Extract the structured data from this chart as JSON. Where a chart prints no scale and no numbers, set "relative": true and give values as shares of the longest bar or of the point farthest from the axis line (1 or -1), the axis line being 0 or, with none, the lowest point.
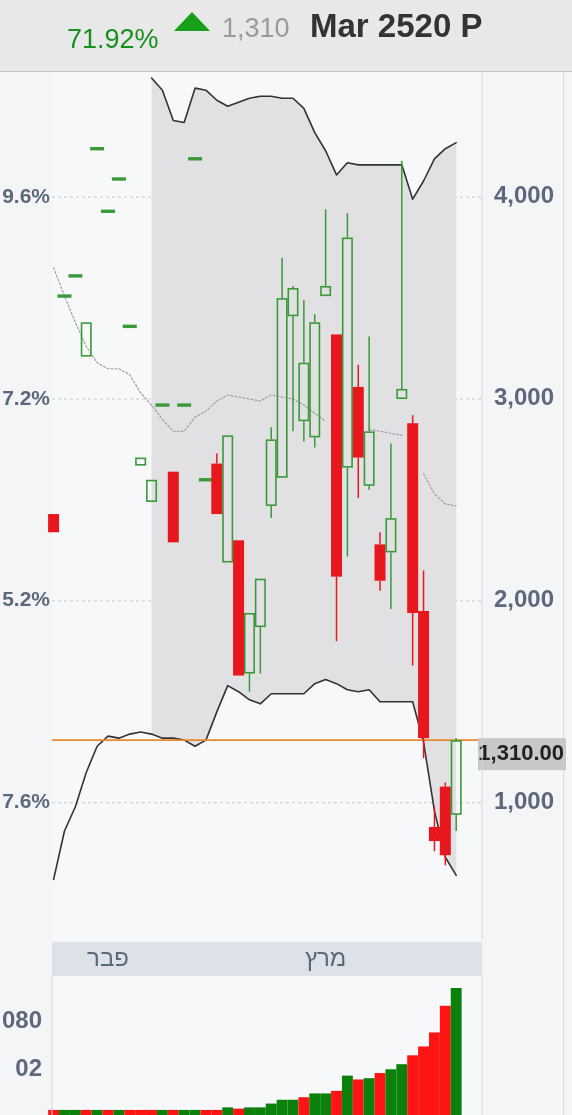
{
  "chart_data": [
    {
      "type": "candlestick",
      "title": "Mar 2520 P",
      "annotations": [
        "71.92%",
        "1,310"
      ],
      "categories": [
        null,
        null,
        null,
        null,
        null,
        "פבר",
        null,
        null,
        null,
        null,
        null,
        null,
        null,
        null,
        null,
        null,
        null,
        null,
        null,
        null,
        null,
        null,
        null,
        null,
        null,
        "מרץ",
        null,
        null,
        null,
        null,
        null,
        null,
        null,
        null,
        null,
        null,
        null,
        null
      ],
      "ohlc": [
        [
          2430,
          2430,
          2340,
          2340
        ],
        [
          3510,
          3510,
          3510,
          3510
        ],
        [
          3610,
          3610,
          3610,
          3610
        ],
        [
          3210,
          3380,
          3210,
          3380
        ],
        [
          4240,
          4240,
          4240,
          4240
        ],
        [
          3930,
          3930,
          3930,
          3930
        ],
        [
          4090,
          4090,
          4090,
          4090
        ],
        [
          3360,
          3360,
          3360,
          3360
        ],
        [
          2670,
          2710,
          2670,
          2710
        ],
        [
          2490,
          2600,
          2490,
          2600
        ],
        [
          2970,
          2970,
          2970,
          2970
        ],
        [
          2640,
          2640,
          2290,
          2290
        ],
        [
          2970,
          2970,
          2970,
          2970
        ],
        [
          4190,
          4190,
          4190,
          4190
        ],
        [
          2600,
          2600,
          2600,
          2600
        ],
        [
          2680,
          2730,
          2430,
          2430
        ],
        [
          2190,
          2820,
          2190,
          2820
        ],
        [
          2300,
          2300,
          1630,
          1630
        ],
        [
          1640,
          1940,
          1550,
          1940
        ],
        [
          1870,
          2110,
          1640,
          2110
        ],
        [
          2470,
          2860,
          2410,
          2800
        ],
        [
          2610,
          3700,
          2610,
          3500
        ],
        [
          3410,
          3560,
          2840,
          3550
        ],
        [
          2890,
          3490,
          2790,
          3180
        ],
        [
          2810,
          3420,
          2760,
          3380
        ],
        [
          3510,
          3940,
          3510,
          3560
        ],
        [
          3320,
          3320,
          1800,
          2120
        ],
        [
          2660,
          3920,
          2220,
          3800
        ],
        [
          3060,
          3170,
          2510,
          2710
        ],
        [
          2570,
          3310,
          2550,
          2840
        ],
        [
          2280,
          2340,
          2050,
          2100
        ],
        [
          2240,
          2780,
          1960,
          2410
        ],
        [
          3000,
          4180,
          3000,
          3050
        ],
        [
          2880,
          2920,
          1680,
          1940
        ],
        [
          1950,
          2150,
          1220,
          1320
        ],
        [
          880,
          980,
          760,
          810
        ],
        [
          1080,
          1100,
          690,
          740
        ],
        [
          940,
          1320,
          860,
          1310
        ]
      ],
      "colors": [
        "#e8171e",
        "#3a9a3a",
        "#3a9a3a",
        "#3a9a3a",
        "#3a9a3a",
        "#3a9a3a",
        "#3a9a3a",
        "#3a9a3a",
        "#3a9a3a",
        "#3a9a3a",
        "#3a9a3a",
        "#e8171e",
        "#3a9a3a",
        "#3a9a3a",
        "#3a9a3a",
        "#e8171e",
        "#3a9a3a",
        "#e8171e",
        "#3a9a3a",
        "#3a9a3a",
        "#3a9a3a",
        "#3a9a3a",
        "#3a9a3a",
        "#3a9a3a",
        "#3a9a3a",
        "#3a9a3a",
        "#e8171e",
        "#3a9a3a",
        "#e8171e",
        "#3a9a3a",
        "#e8171e",
        "#3a9a3a",
        "#3a9a3a",
        "#e8171e",
        "#e8171e",
        "#e8171e",
        "#e8171e",
        "#3a9a3a"
      ],
      "series": [
        {
          "type": "line",
          "color": "#9a9a9a",
          "line_style": "dotted",
          "values": [
            3650,
            3510,
            3380,
            3260,
            3180,
            3150,
            3150,
            3120,
            3030,
            2970,
            2900,
            2840,
            2840,
            2910,
            2940,
            2990,
            3020,
            3010,
            3000,
            2990,
            3020,
            3010,
            3000,
            2970,
            2930,
            2890,
            null,
            null,
            null,
            2850,
            2840,
            2830,
            2820,
            null,
            2630,
            2530,
            2480,
            2470
          ],
          "lower": [
            null,
            null,
            null,
            null,
            null,
            null,
            null,
            null,
            null,
            1340,
            1320,
            1320,
            1310,
            1280,
            1310,
            1450,
            1580,
            1550,
            1510,
            1490,
            1540,
            1540,
            1540,
            1540,
            1590,
            1610,
            1590,
            1560,
            1550,
            1560,
            1500,
            1500,
            1500,
            1500,
            1300,
            960,
            730,
            640
          ],
          "upper": [
            null,
            null,
            null,
            null,
            null,
            null,
            null,
            null,
            null,
            4590,
            4530,
            4380,
            4370,
            4540,
            4530,
            4480,
            4450,
            4470,
            4490,
            4500,
            4500,
            4490,
            4490,
            4440,
            4320,
            4230,
            4110,
            4170,
            4160,
            4160,
            4160,
            4160,
            4160,
            3990,
            4080,
            4190,
            4240,
            4270
          ]
        },
        {
          "type": "line",
          "color": "#333333",
          "values": [
            null,
            null,
            null,
            null,
            null,
            null,
            null,
            null,
            null,
            4590,
            4530,
            4380,
            4370,
            4540,
            4530,
            4480,
            4450,
            4470,
            4490,
            4500,
            4500,
            4490,
            4490,
            4440,
            4320,
            4230,
            4110,
            4170,
            4160,
            4160,
            4160,
            4160,
            4160,
            3990,
            4080,
            4190,
            4240,
            4270
          ]
        },
        {
          "type": "line",
          "color": "#333333",
          "values": [
            620,
            860,
            980,
            1150,
            1280,
            1330,
            1320,
            1340,
            1350,
            1340,
            1320,
            1320,
            1310,
            1280,
            1310,
            1450,
            1580,
            1550,
            1510,
            1490,
            1540,
            1540,
            1540,
            1540,
            1590,
            1610,
            1590,
            1560,
            1550,
            1560,
            1500,
            1500,
            1500,
            1500,
            1300,
            960,
            730,
            640
          ]
        }
      ],
      "ylim": [
        320,
        4620
      ],
      "yticks": [
        {
          "value": 1000,
          "label": "1,000"
        },
        {
          "value": 2000,
          "label": "2,000"
        },
        {
          "value": 3000,
          "label": "3,000"
        },
        {
          "value": 4000,
          "label": "4,000"
        }
      ],
      "y2_categories": [
        "9.6%",
        "7.2%",
        "5.2%",
        "7.6%"
      ],
      "grid": "y",
      "ref_lines": [
        {
          "axis": "y",
          "value": 1310,
          "label": "1,310.00",
          "color": "#e8892b"
        }
      ]
    },
    {
      "type": "bar",
      "relative": true,
      "categories": [
        null,
        null,
        null,
        null,
        null,
        null,
        null,
        null,
        null,
        null,
        null,
        null,
        null,
        null,
        null,
        null,
        null,
        null,
        null,
        null,
        null,
        null,
        null,
        null,
        null,
        null,
        null,
        null,
        null,
        null,
        null,
        null,
        null,
        null,
        null,
        null,
        null,
        null
      ],
      "values": [
        0.04,
        0.04,
        0.04,
        0.04,
        0.04,
        0.04,
        0.04,
        0.04,
        0.04,
        0.04,
        0.04,
        0.04,
        0.04,
        0.04,
        0.04,
        0.04,
        0.06,
        0.05,
        0.06,
        0.06,
        0.09,
        0.12,
        0.12,
        0.14,
        0.17,
        0.17,
        0.19,
        0.31,
        0.28,
        0.29,
        0.33,
        0.36,
        0.4,
        0.47,
        0.54,
        0.65,
        0.86,
        1.0
      ],
      "colors": [
        "#ff1414",
        "#0b800b",
        "#0b800b",
        "#ff1414",
        "#0b800b",
        "#ff1414",
        "#0b800b",
        "#ff1414",
        "#ff1414",
        "#ff1414",
        "#0b800b",
        "#ff1414",
        "#0b800b",
        "#0b800b",
        "#ff1414",
        "#ff1414",
        "#0b800b",
        "#ff1414",
        "#0b800b",
        "#0b800b",
        "#0b800b",
        "#0b800b",
        "#0b800b",
        "#ff1414",
        "#0b800b",
        "#0b800b",
        "#ff1414",
        "#0b800b",
        "#ff1414",
        "#0b800b",
        "#ff1414",
        "#0b800b",
        "#0b800b",
        "#ff1414",
        "#ff1414",
        "#ff1414",
        "#ff1414",
        "#0b800b"
      ],
      "y_categories": [
        "080",
        "02"
      ],
      "tick_labels": "y"
    }
  ]
}
